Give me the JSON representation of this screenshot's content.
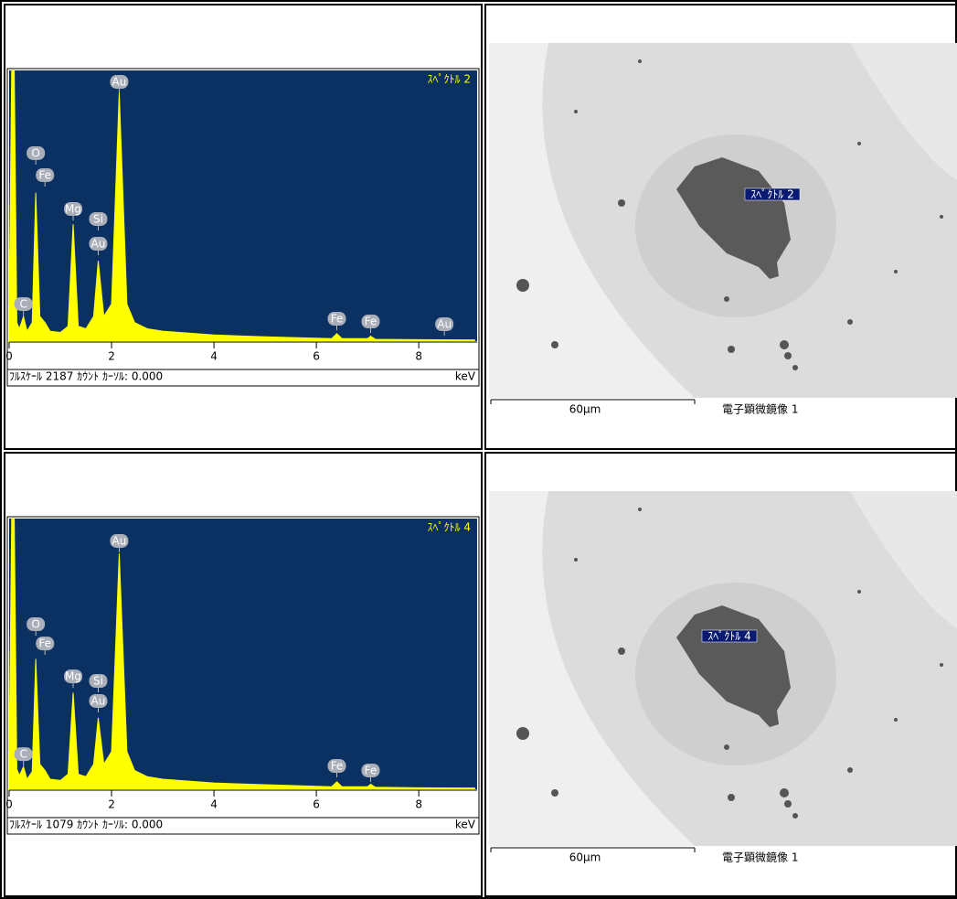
{
  "chart_data": [
    {
      "type": "area",
      "title": "ｽﾍﾟｸﾄﾙ 2",
      "footer": "ﾌﾙｽｹｰﾙ 2187 ｶｳﾝﾄ ｶｰｿﾙ: 0.000",
      "xlabel": "keV",
      "color": "#ffff00",
      "background": "#0a3161",
      "xlim": [
        0,
        9.14
      ],
      "xticks": [
        0,
        2,
        4,
        6,
        8
      ],
      "ylim": [
        0,
        2187
      ],
      "x": [
        0,
        0.05,
        0.1,
        0.15,
        0.2,
        0.28,
        0.35,
        0.45,
        0.52,
        0.6,
        0.7,
        0.8,
        1.0,
        1.15,
        1.25,
        1.35,
        1.5,
        1.65,
        1.74,
        1.85,
        2.0,
        2.15,
        2.3,
        2.45,
        2.7,
        3.0,
        4.0,
        5.0,
        6.3,
        6.4,
        6.5,
        7.0,
        7.06,
        7.15,
        8.0,
        9.1
      ],
      "values": [
        300,
        2187,
        2187,
        150,
        100,
        200,
        80,
        150,
        1200,
        200,
        150,
        80,
        70,
        120,
        945,
        120,
        100,
        200,
        650,
        200,
        300,
        2010,
        300,
        150,
        100,
        80,
        50,
        35,
        20,
        60,
        20,
        20,
        40,
        15,
        12,
        10
      ],
      "annotations": [
        {
          "text": "C",
          "x": 0.28,
          "y": 296
        },
        {
          "text": "O",
          "x": 0.52,
          "y": 1515
        },
        {
          "text": "Fe",
          "x": 0.7,
          "y": 1337
        },
        {
          "text": "Mg",
          "x": 1.25,
          "y": 1064
        },
        {
          "text": "Si",
          "x": 1.74,
          "y": 983
        },
        {
          "text": "Au",
          "x": 1.74,
          "y": 783
        },
        {
          "text": "Au",
          "x": 2.15,
          "y": 2091
        },
        {
          "text": "Fe",
          "x": 6.4,
          "y": 177
        },
        {
          "text": "Fe",
          "x": 7.06,
          "y": 155
        },
        {
          "text": "Au",
          "x": 8.5,
          "y": 133
        }
      ]
    },
    {
      "type": "area",
      "title": "ｽﾍﾟｸﾄﾙ 4",
      "footer": "ﾌﾙｽｹｰﾙ 1079 ｶｳﾝﾄ ｶｰｿﾙ: 0.000",
      "xlabel": "keV",
      "color": "#ffff00",
      "background": "#0a3161",
      "xlim": [
        0,
        9.14
      ],
      "xticks": [
        0,
        2,
        4,
        6,
        8
      ],
      "ylim": [
        0,
        1079
      ],
      "x": [
        0,
        0.05,
        0.1,
        0.15,
        0.2,
        0.28,
        0.35,
        0.45,
        0.52,
        0.6,
        0.7,
        0.8,
        1.0,
        1.15,
        1.25,
        1.35,
        1.5,
        1.65,
        1.74,
        1.85,
        2.0,
        2.15,
        2.3,
        2.45,
        2.7,
        3.0,
        4.0,
        5.0,
        6.3,
        6.4,
        6.5,
        7.0,
        7.06,
        7.15,
        8.0,
        9.1
      ],
      "values": [
        150,
        1079,
        1079,
        80,
        55,
        90,
        40,
        70,
        520,
        100,
        75,
        40,
        35,
        60,
        385,
        60,
        50,
        100,
        285,
        100,
        150,
        940,
        150,
        75,
        50,
        40,
        25,
        18,
        10,
        30,
        10,
        10,
        20,
        8,
        6,
        5
      ],
      "annotations": [
        {
          "text": "C",
          "x": 0.28,
          "y": 138
        },
        {
          "text": "O",
          "x": 0.52,
          "y": 656
        },
        {
          "text": "Fe",
          "x": 0.7,
          "y": 579
        },
        {
          "text": "Mg",
          "x": 1.25,
          "y": 448
        },
        {
          "text": "Si",
          "x": 1.74,
          "y": 430
        },
        {
          "text": "Au",
          "x": 1.74,
          "y": 350
        },
        {
          "text": "Au",
          "x": 2.15,
          "y": 988
        },
        {
          "text": "Fe",
          "x": 6.4,
          "y": 91
        },
        {
          "text": "Fe",
          "x": 7.06,
          "y": 73
        }
      ]
    }
  ],
  "images": [
    {
      "label": "ｽﾍﾟｸﾄﾙ 2",
      "scale_bar": "60µm",
      "caption": "電子顕微鏡像 1"
    },
    {
      "label": "ｽﾍﾟｸﾄﾙ 4",
      "scale_bar": "60µm",
      "caption": "電子顕微鏡像 1"
    }
  ]
}
